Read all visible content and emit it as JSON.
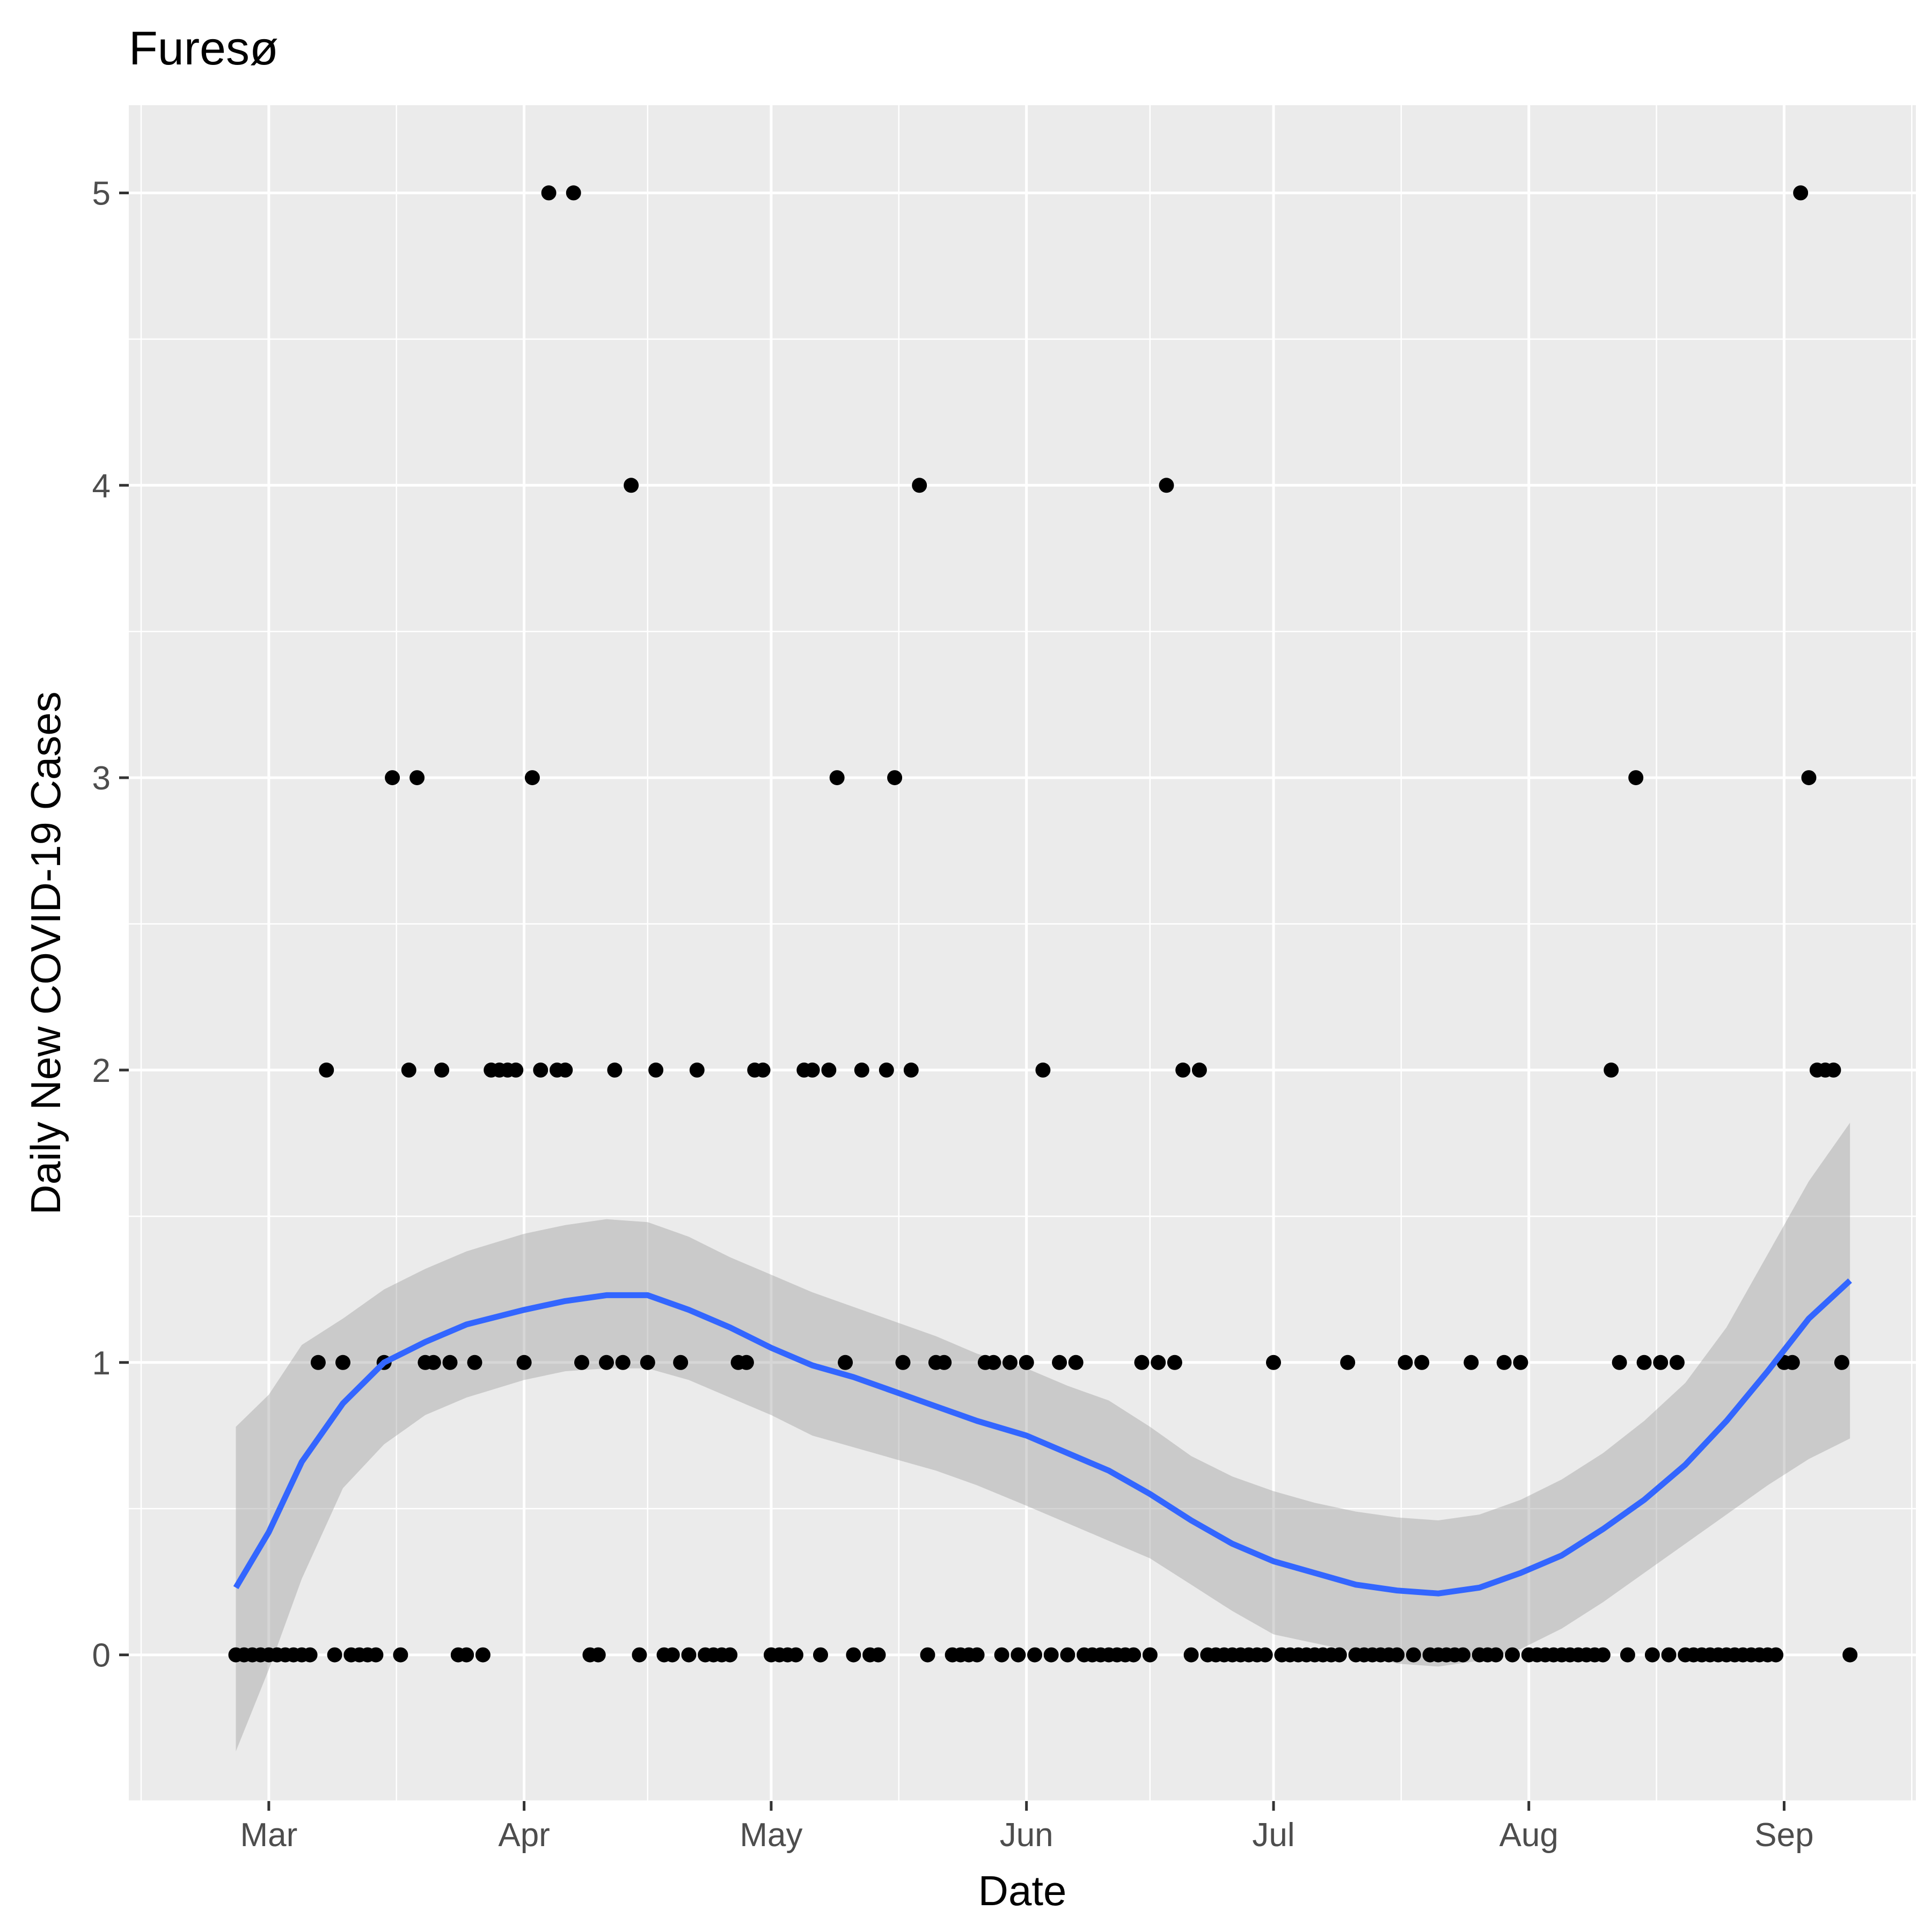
{
  "chart_data": {
    "type": "scatter",
    "title": "Furesø",
    "xlabel": "Date",
    "ylabel": "Daily New COVID-19 Cases",
    "xlim": [
      "2020-02-13",
      "2020-09-17"
    ],
    "ylim": [
      -0.5,
      5.3
    ],
    "grid": true,
    "legend": "none",
    "x_ticks": [
      {
        "date": "2020-03-01",
        "label": "Mar"
      },
      {
        "date": "2020-04-01",
        "label": "Apr"
      },
      {
        "date": "2020-05-01",
        "label": "May"
      },
      {
        "date": "2020-06-01",
        "label": "Jun"
      },
      {
        "date": "2020-07-01",
        "label": "Jul"
      },
      {
        "date": "2020-08-01",
        "label": "Aug"
      },
      {
        "date": "2020-09-01",
        "label": "Sep"
      }
    ],
    "y_ticks": [
      0,
      1,
      2,
      3,
      4,
      5
    ],
    "points": [
      [
        "2020-02-26",
        0
      ],
      [
        "2020-02-27",
        0
      ],
      [
        "2020-02-28",
        0
      ],
      [
        "2020-02-29",
        0
      ],
      [
        "2020-03-01",
        0
      ],
      [
        "2020-03-02",
        0
      ],
      [
        "2020-03-03",
        0
      ],
      [
        "2020-03-04",
        0
      ],
      [
        "2020-03-05",
        0
      ],
      [
        "2020-03-06",
        0
      ],
      [
        "2020-03-07",
        1
      ],
      [
        "2020-03-08",
        2
      ],
      [
        "2020-03-09",
        0
      ],
      [
        "2020-03-10",
        1
      ],
      [
        "2020-03-11",
        0
      ],
      [
        "2020-03-12",
        0
      ],
      [
        "2020-03-13",
        0
      ],
      [
        "2020-03-14",
        0
      ],
      [
        "2020-03-15",
        1
      ],
      [
        "2020-03-16",
        3
      ],
      [
        "2020-03-17",
        0
      ],
      [
        "2020-03-18",
        2
      ],
      [
        "2020-03-19",
        3
      ],
      [
        "2020-03-20",
        1
      ],
      [
        "2020-03-21",
        1
      ],
      [
        "2020-03-22",
        2
      ],
      [
        "2020-03-23",
        1
      ],
      [
        "2020-03-24",
        0
      ],
      [
        "2020-03-25",
        0
      ],
      [
        "2020-03-26",
        1
      ],
      [
        "2020-03-27",
        0
      ],
      [
        "2020-03-28",
        2
      ],
      [
        "2020-03-29",
        2
      ],
      [
        "2020-03-30",
        2
      ],
      [
        "2020-03-31",
        2
      ],
      [
        "2020-04-01",
        1
      ],
      [
        "2020-04-02",
        3
      ],
      [
        "2020-04-03",
        2
      ],
      [
        "2020-04-04",
        5
      ],
      [
        "2020-04-05",
        2
      ],
      [
        "2020-04-06",
        2
      ],
      [
        "2020-04-07",
        5
      ],
      [
        "2020-04-08",
        1
      ],
      [
        "2020-04-09",
        0
      ],
      [
        "2020-04-10",
        0
      ],
      [
        "2020-04-11",
        1
      ],
      [
        "2020-04-12",
        2
      ],
      [
        "2020-04-13",
        1
      ],
      [
        "2020-04-14",
        4
      ],
      [
        "2020-04-15",
        0
      ],
      [
        "2020-04-16",
        1
      ],
      [
        "2020-04-17",
        2
      ],
      [
        "2020-04-18",
        0
      ],
      [
        "2020-04-19",
        0
      ],
      [
        "2020-04-20",
        1
      ],
      [
        "2020-04-21",
        0
      ],
      [
        "2020-04-22",
        2
      ],
      [
        "2020-04-23",
        0
      ],
      [
        "2020-04-24",
        0
      ],
      [
        "2020-04-25",
        0
      ],
      [
        "2020-04-26",
        0
      ],
      [
        "2020-04-27",
        1
      ],
      [
        "2020-04-28",
        1
      ],
      [
        "2020-04-29",
        2
      ],
      [
        "2020-04-30",
        2
      ],
      [
        "2020-05-01",
        0
      ],
      [
        "2020-05-02",
        0
      ],
      [
        "2020-05-03",
        0
      ],
      [
        "2020-05-04",
        0
      ],
      [
        "2020-05-05",
        2
      ],
      [
        "2020-05-06",
        2
      ],
      [
        "2020-05-07",
        0
      ],
      [
        "2020-05-08",
        2
      ],
      [
        "2020-05-09",
        3
      ],
      [
        "2020-05-10",
        1
      ],
      [
        "2020-05-11",
        0
      ],
      [
        "2020-05-12",
        2
      ],
      [
        "2020-05-13",
        0
      ],
      [
        "2020-05-14",
        0
      ],
      [
        "2020-05-15",
        2
      ],
      [
        "2020-05-16",
        3
      ],
      [
        "2020-05-17",
        1
      ],
      [
        "2020-05-18",
        2
      ],
      [
        "2020-05-19",
        4
      ],
      [
        "2020-05-20",
        0
      ],
      [
        "2020-05-21",
        1
      ],
      [
        "2020-05-22",
        1
      ],
      [
        "2020-05-23",
        0
      ],
      [
        "2020-05-24",
        0
      ],
      [
        "2020-05-25",
        0
      ],
      [
        "2020-05-26",
        0
      ],
      [
        "2020-05-27",
        1
      ],
      [
        "2020-05-28",
        1
      ],
      [
        "2020-05-29",
        0
      ],
      [
        "2020-05-30",
        1
      ],
      [
        "2020-05-31",
        0
      ],
      [
        "2020-06-01",
        1
      ],
      [
        "2020-06-02",
        0
      ],
      [
        "2020-06-03",
        2
      ],
      [
        "2020-06-04",
        0
      ],
      [
        "2020-06-05",
        1
      ],
      [
        "2020-06-06",
        0
      ],
      [
        "2020-06-07",
        1
      ],
      [
        "2020-06-08",
        0
      ],
      [
        "2020-06-09",
        0
      ],
      [
        "2020-06-10",
        0
      ],
      [
        "2020-06-11",
        0
      ],
      [
        "2020-06-12",
        0
      ],
      [
        "2020-06-13",
        0
      ],
      [
        "2020-06-14",
        0
      ],
      [
        "2020-06-15",
        1
      ],
      [
        "2020-06-16",
        0
      ],
      [
        "2020-06-17",
        1
      ],
      [
        "2020-06-18",
        4
      ],
      [
        "2020-06-19",
        1
      ],
      [
        "2020-06-20",
        2
      ],
      [
        "2020-06-21",
        0
      ],
      [
        "2020-06-22",
        2
      ],
      [
        "2020-06-23",
        0
      ],
      [
        "2020-06-24",
        0
      ],
      [
        "2020-06-25",
        0
      ],
      [
        "2020-06-26",
        0
      ],
      [
        "2020-06-27",
        0
      ],
      [
        "2020-06-28",
        0
      ],
      [
        "2020-06-29",
        0
      ],
      [
        "2020-06-30",
        0
      ],
      [
        "2020-07-01",
        1
      ],
      [
        "2020-07-02",
        0
      ],
      [
        "2020-07-03",
        0
      ],
      [
        "2020-07-04",
        0
      ],
      [
        "2020-07-05",
        0
      ],
      [
        "2020-07-06",
        0
      ],
      [
        "2020-07-07",
        0
      ],
      [
        "2020-07-08",
        0
      ],
      [
        "2020-07-09",
        0
      ],
      [
        "2020-07-10",
        1
      ],
      [
        "2020-07-11",
        0
      ],
      [
        "2020-07-12",
        0
      ],
      [
        "2020-07-13",
        0
      ],
      [
        "2020-07-14",
        0
      ],
      [
        "2020-07-15",
        0
      ],
      [
        "2020-07-16",
        0
      ],
      [
        "2020-07-17",
        1
      ],
      [
        "2020-07-18",
        0
      ],
      [
        "2020-07-19",
        1
      ],
      [
        "2020-07-20",
        0
      ],
      [
        "2020-07-21",
        0
      ],
      [
        "2020-07-22",
        0
      ],
      [
        "2020-07-23",
        0
      ],
      [
        "2020-07-24",
        0
      ],
      [
        "2020-07-25",
        1
      ],
      [
        "2020-07-26",
        0
      ],
      [
        "2020-07-27",
        0
      ],
      [
        "2020-07-28",
        0
      ],
      [
        "2020-07-29",
        1
      ],
      [
        "2020-07-30",
        0
      ],
      [
        "2020-07-31",
        1
      ],
      [
        "2020-08-01",
        0
      ],
      [
        "2020-08-02",
        0
      ],
      [
        "2020-08-03",
        0
      ],
      [
        "2020-08-04",
        0
      ],
      [
        "2020-08-05",
        0
      ],
      [
        "2020-08-06",
        0
      ],
      [
        "2020-08-07",
        0
      ],
      [
        "2020-08-08",
        0
      ],
      [
        "2020-08-09",
        0
      ],
      [
        "2020-08-10",
        0
      ],
      [
        "2020-08-11",
        2
      ],
      [
        "2020-08-12",
        1
      ],
      [
        "2020-08-13",
        0
      ],
      [
        "2020-08-14",
        3
      ],
      [
        "2020-08-15",
        1
      ],
      [
        "2020-08-16",
        0
      ],
      [
        "2020-08-17",
        1
      ],
      [
        "2020-08-18",
        0
      ],
      [
        "2020-08-19",
        1
      ],
      [
        "2020-08-20",
        0
      ],
      [
        "2020-08-21",
        0
      ],
      [
        "2020-08-22",
        0
      ],
      [
        "2020-08-23",
        0
      ],
      [
        "2020-08-24",
        0
      ],
      [
        "2020-08-25",
        0
      ],
      [
        "2020-08-26",
        0
      ],
      [
        "2020-08-27",
        0
      ],
      [
        "2020-08-28",
        0
      ],
      [
        "2020-08-29",
        0
      ],
      [
        "2020-08-30",
        0
      ],
      [
        "2020-08-31",
        0
      ],
      [
        "2020-09-01",
        1
      ],
      [
        "2020-09-02",
        1
      ],
      [
        "2020-09-03",
        5
      ],
      [
        "2020-09-04",
        3
      ],
      [
        "2020-09-05",
        2
      ],
      [
        "2020-09-06",
        2
      ],
      [
        "2020-09-07",
        2
      ],
      [
        "2020-09-08",
        1
      ],
      [
        "2020-09-09",
        0
      ]
    ],
    "smooth": {
      "method": "loess",
      "color": "#3366ff",
      "ribbon_color": "#999999",
      "fit": [
        [
          "2020-02-26",
          0.23,
          -0.33,
          0.78
        ],
        [
          "2020-03-01",
          0.42,
          -0.05,
          0.89
        ],
        [
          "2020-03-05",
          0.66,
          0.26,
          1.06
        ],
        [
          "2020-03-10",
          0.86,
          0.57,
          1.15
        ],
        [
          "2020-03-15",
          1.0,
          0.72,
          1.25
        ],
        [
          "2020-03-20",
          1.07,
          0.82,
          1.32
        ],
        [
          "2020-03-25",
          1.13,
          0.88,
          1.38
        ],
        [
          "2020-04-01",
          1.18,
          0.94,
          1.44
        ],
        [
          "2020-04-06",
          1.21,
          0.97,
          1.47
        ],
        [
          "2020-04-11",
          1.23,
          0.98,
          1.49
        ],
        [
          "2020-04-16",
          1.23,
          0.98,
          1.48
        ],
        [
          "2020-04-21",
          1.18,
          0.94,
          1.43
        ],
        [
          "2020-04-26",
          1.12,
          0.88,
          1.36
        ],
        [
          "2020-05-01",
          1.05,
          0.82,
          1.3
        ],
        [
          "2020-05-06",
          0.99,
          0.75,
          1.24
        ],
        [
          "2020-05-11",
          0.95,
          0.71,
          1.19
        ],
        [
          "2020-05-16",
          0.9,
          0.67,
          1.14
        ],
        [
          "2020-05-21",
          0.85,
          0.63,
          1.09
        ],
        [
          "2020-05-26",
          0.8,
          0.58,
          1.03
        ],
        [
          "2020-06-01",
          0.75,
          0.51,
          0.98
        ],
        [
          "2020-06-06",
          0.69,
          0.45,
          0.92
        ],
        [
          "2020-06-11",
          0.63,
          0.39,
          0.87
        ],
        [
          "2020-06-16",
          0.55,
          0.33,
          0.78
        ],
        [
          "2020-06-21",
          0.46,
          0.24,
          0.68
        ],
        [
          "2020-06-26",
          0.38,
          0.15,
          0.61
        ],
        [
          "2020-07-01",
          0.32,
          0.07,
          0.56
        ],
        [
          "2020-07-06",
          0.28,
          0.04,
          0.52
        ],
        [
          "2020-07-11",
          0.24,
          0.01,
          0.49
        ],
        [
          "2020-07-16",
          0.22,
          -0.03,
          0.47
        ],
        [
          "2020-07-21",
          0.21,
          -0.04,
          0.46
        ],
        [
          "2020-07-26",
          0.23,
          -0.02,
          0.48
        ],
        [
          "2020-07-31",
          0.28,
          0.02,
          0.53
        ],
        [
          "2020-08-05",
          0.34,
          0.09,
          0.6
        ],
        [
          "2020-08-10",
          0.43,
          0.18,
          0.69
        ],
        [
          "2020-08-15",
          0.53,
          0.28,
          0.8
        ],
        [
          "2020-08-20",
          0.65,
          0.38,
          0.93
        ],
        [
          "2020-08-25",
          0.8,
          0.48,
          1.12
        ],
        [
          "2020-08-30",
          0.97,
          0.58,
          1.37
        ],
        [
          "2020-09-04",
          1.15,
          0.67,
          1.62
        ],
        [
          "2020-09-09",
          1.28,
          0.74,
          1.82
        ]
      ]
    }
  }
}
